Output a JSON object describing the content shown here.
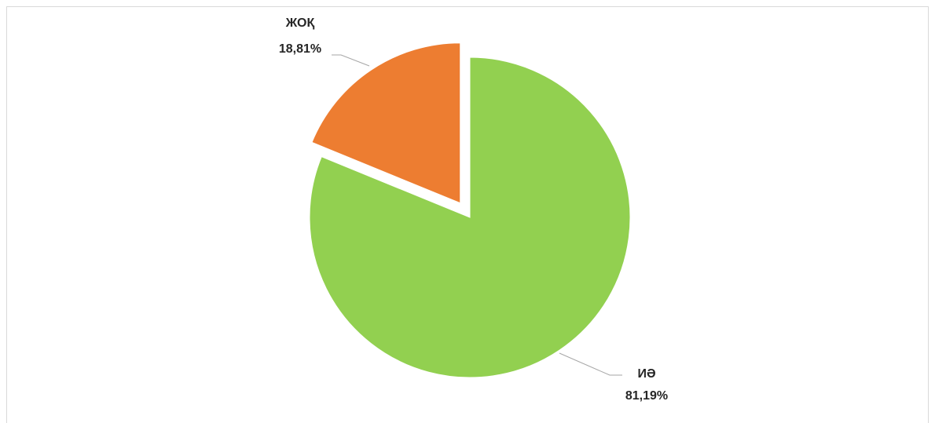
{
  "chart_data": {
    "type": "pie",
    "title": "",
    "slices": [
      {
        "label": "ИӘ",
        "value": 81.19,
        "display": "81,19%",
        "color": "#92d050",
        "exploded": false
      },
      {
        "label": "ЖОҚ",
        "value": 18.81,
        "display": "18,81%",
        "color": "#ed7d31",
        "exploded": true
      }
    ],
    "legend": "none",
    "data_labels": "outside with leader lines"
  }
}
